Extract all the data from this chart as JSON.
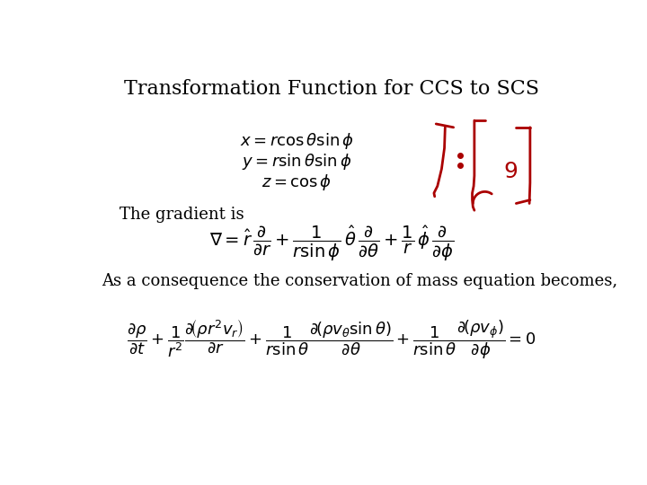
{
  "title": "Transformation Function for CCS to SCS",
  "title_fontsize": 16,
  "bg_color": "#ffffff",
  "text_fontsize": 13,
  "eq_fontsize": 13,
  "gradient_eq_fontsize": 14,
  "mass_eq_fontsize": 13,
  "annotation_color": "#aa0000"
}
